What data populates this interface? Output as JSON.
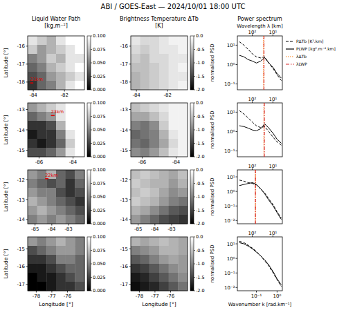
{
  "title": "ABI / GOES-East — 2024/10/01  18:00 UTC",
  "chart_data": [
    {
      "type": "heatmap",
      "title": "Liquid Water Path",
      "subtitle": "[kg.m⁻²]",
      "ylabel": "Latitude [°]",
      "xlim": [
        -84.36,
        -80.72
      ],
      "ylim": [
        -18.43,
        -15.43
      ],
      "xticks": [
        -84,
        -82
      ],
      "yticks": [
        -18,
        -17,
        -16
      ],
      "cells": [
        [
          0.09,
          0.08,
          0.07,
          0.09,
          0.1,
          0.1
        ],
        [
          0.08,
          0.06,
          0.07,
          0.08,
          0.09,
          0.1
        ],
        [
          0.05,
          0.06,
          0.08,
          0.07,
          0.09,
          0.09
        ],
        [
          0.04,
          0.05,
          0.07,
          0.08,
          0.09,
          0.1
        ],
        [
          0.03,
          0.04,
          0.06,
          0.07,
          0.08,
          0.09
        ],
        [
          0.02,
          0.04,
          0.05,
          0.07,
          0.09,
          0.1
        ]
      ],
      "colorbar": {
        "range": [
          0,
          0.1
        ],
        "ticks": [
          {
            "value": 0,
            "label": "0.000"
          },
          {
            "value": 0.025,
            "label": "0.025"
          },
          {
            "value": 0.05,
            "label": "0.050"
          },
          {
            "value": 0.075,
            "label": "0.075"
          },
          {
            "value": 0.1,
            "label": "0.100"
          }
        ]
      },
      "scalebar": {
        "label": "21km",
        "km": 21,
        "lon": -84.2,
        "lat": -18.05
      }
    },
    {
      "type": "heatmap",
      "title": "Brightness Temperature ΔTb",
      "subtitle": "[K]",
      "xlim": [
        -84.36,
        -80.72
      ],
      "ylim": [
        -18.43,
        -15.43
      ],
      "xticks": [
        -84,
        -82
      ],
      "yticks": [
        -18,
        -17,
        -16
      ],
      "cells": [
        [
          -0.2,
          -0.3,
          -0.3,
          -0.2,
          -0.1,
          -0.1
        ],
        [
          -0.3,
          -0.4,
          -0.3,
          -0.2,
          -0.2,
          -0.1
        ],
        [
          -0.4,
          -0.5,
          -0.3,
          -0.3,
          -0.2,
          -0.2
        ],
        [
          -0.5,
          -0.5,
          -0.4,
          -0.3,
          -0.2,
          -0.1
        ],
        [
          -0.6,
          -0.5,
          -0.4,
          -0.3,
          -0.2,
          -0.2
        ],
        [
          -0.6,
          -0.5,
          -0.4,
          -0.3,
          -0.2,
          -0.1
        ]
      ],
      "colorbar": {
        "range": [
          -2,
          0
        ],
        "ticks": [
          {
            "value": -2,
            "label": "-2.0"
          },
          -1.5,
          {
            "value": -1,
            "label": "-1.0"
          },
          -0.5,
          {
            "value": 0,
            "label": "0.0"
          }
        ]
      }
    },
    {
      "type": "line",
      "title": "Power spectrum",
      "x2label": "Wavelength λ [km]",
      "ylabel": "normalised PSD",
      "log": true,
      "legend": "right",
      "xlim": [
        0.012,
        1.8
      ],
      "x2lim": [
        523.6,
        3.49
      ],
      "x2ticks": [
        {
          "value": 100,
          "label": "10²"
        },
        {
          "value": 10,
          "label": "10¹"
        }
      ],
      "ylim": [
        0.05,
        30
      ],
      "yticks": [
        {
          "value": 0.1,
          "label": "10⁻¹"
        },
        {
          "value": 1,
          "label": "10⁰"
        },
        {
          "value": 10,
          "label": "10¹"
        }
      ],
      "x": [
        0.015,
        0.025,
        0.04,
        0.065,
        0.1,
        0.16,
        0.25,
        0.4,
        0.65,
        1.0,
        1.6
      ],
      "series": [
        {
          "name": "PΔTb [K².km]",
          "color": "#000000",
          "line_style": "dashed",
          "values": [
            15,
            10,
            6,
            3.5,
            2.5,
            2.2,
            2.5,
            1.2,
            0.6,
            0.3,
            0.15
          ]
        },
        {
          "name": "PLWP [kg².m⁻⁴.km]",
          "color": "#000000",
          "line_style": "solid",
          "values": [
            3,
            2.5,
            1.8,
            1.5,
            1.2,
            1.5,
            2.3,
            1.2,
            0.7,
            0.35,
            0.2
          ]
        }
      ],
      "markers": [
        {
          "name": "λΔTb",
          "color": "#ff7f0e",
          "line_style": "dotted",
          "value": 28
        },
        {
          "name": "λLWP",
          "color": "#d62728",
          "line_style": "dashdot",
          "value": 27
        }
      ]
    },
    {
      "type": "heatmap",
      "ylabel": "Latitude [°]",
      "xlim": [
        -86.67,
        -83.33
      ],
      "ylim": [
        -15.32,
        -12.68
      ],
      "xticks": [
        -86,
        -84
      ],
      "yticks": [
        -15,
        -14,
        -13
      ],
      "cells": [
        [
          0.06,
          0.07,
          0.08,
          0.09,
          0.1,
          0.1
        ],
        [
          0.04,
          0.05,
          0.06,
          0.09,
          0.1,
          0.1
        ],
        [
          0.02,
          0.02,
          0.03,
          0.07,
          0.1,
          0.1
        ],
        [
          0.01,
          0.02,
          0.02,
          0.05,
          0.09,
          0.1
        ],
        [
          0.02,
          0.01,
          0.02,
          0.04,
          0.08,
          0.1
        ],
        [
          0.03,
          0.03,
          0.04,
          0.06,
          0.09,
          0.1
        ]
      ],
      "colorbar": {
        "range": [
          0,
          0.1
        ],
        "ticks": [
          {
            "value": 0,
            "label": "0.000"
          },
          {
            "value": 0.025,
            "label": "0.025"
          },
          {
            "value": 0.05,
            "label": "0.050"
          },
          {
            "value": 0.075,
            "label": "0.075"
          },
          {
            "value": 0.1,
            "label": "0.100"
          }
        ]
      },
      "scalebar": {
        "label": "23km",
        "km": 23,
        "lon": -85.3,
        "lat": -13.3
      }
    },
    {
      "type": "heatmap",
      "xlim": [
        -86.67,
        -83.33
      ],
      "ylim": [
        -15.32,
        -12.68
      ],
      "xticks": [
        -86,
        -84
      ],
      "yticks": [
        -15,
        -14,
        -13
      ],
      "cells": [
        [
          -0.5,
          -0.4,
          -0.3,
          -0.2,
          -0.1,
          -0.1
        ],
        [
          -0.7,
          -0.7,
          -0.5,
          -0.3,
          -0.1,
          -0.1
        ],
        [
          -1.0,
          -1.1,
          -0.9,
          -0.4,
          -0.1,
          -0.1
        ],
        [
          -1.2,
          -1.1,
          -1.0,
          -0.6,
          -0.2,
          -0.1
        ],
        [
          -1.1,
          -1.2,
          -1.0,
          -0.7,
          -0.3,
          -0.1
        ],
        [
          -0.9,
          -1.0,
          -0.8,
          -0.5,
          -0.2,
          -0.1
        ]
      ],
      "colorbar": {
        "range": [
          -2,
          0
        ],
        "ticks": [
          {
            "value": -2,
            "label": "-2.0"
          },
          -1.5,
          {
            "value": -1,
            "label": "-1.0"
          },
          -0.5,
          {
            "value": 0,
            "label": "0.0"
          }
        ]
      }
    },
    {
      "type": "line",
      "ylabel": "normalised PSD",
      "log": true,
      "xlim": [
        0.012,
        1.8
      ],
      "x2lim": [
        523.6,
        3.49
      ],
      "x2ticks": [
        {
          "value": 100,
          "label": "10²"
        },
        {
          "value": 10,
          "label": "10¹"
        }
      ],
      "ylim": [
        0.05,
        30
      ],
      "yticks": [
        {
          "value": 0.1,
          "label": "10⁻¹"
        },
        {
          "value": 1,
          "label": "10⁰"
        },
        {
          "value": 10,
          "label": "10¹"
        }
      ],
      "x": [
        0.015,
        0.025,
        0.04,
        0.065,
        0.1,
        0.16,
        0.25,
        0.4,
        0.65,
        1.0,
        1.6
      ],
      "series": [
        {
          "color": "#000000",
          "line_style": "dashed",
          "values": [
            12,
            8,
            5,
            3,
            2,
            1.6,
            1.8,
            1,
            0.5,
            0.3,
            0.2
          ]
        },
        {
          "color": "#000000",
          "line_style": "solid",
          "values": [
            2,
            1.8,
            1.5,
            1.2,
            1.1,
            1.4,
            2.5,
            1.5,
            0.8,
            0.4,
            0.25
          ]
        }
      ],
      "markers": [
        {
          "color": "#ff7f0e",
          "line_style": "dotted",
          "value": 27
        },
        {
          "color": "#d62728",
          "line_style": "dashdot",
          "value": 26
        }
      ]
    },
    {
      "type": "heatmap",
      "ylabel": "Latitude [°]",
      "xlim": [
        -85.44,
        -82.05
      ],
      "ylim": [
        -14.21,
        -11.51
      ],
      "xticks": [
        -85,
        -84,
        -83
      ],
      "yticks": [
        -14,
        -13,
        -12
      ],
      "cells": [
        [
          0.06,
          0.05,
          0.07,
          0.04,
          0.03,
          0.05
        ],
        [
          0.05,
          0.04,
          0.03,
          0.04,
          0.02,
          0.04
        ],
        [
          0.06,
          0.05,
          0.05,
          0.03,
          0.02,
          0.03
        ],
        [
          0.07,
          0.06,
          0.05,
          0.04,
          0.03,
          0.02
        ],
        [
          0.06,
          0.07,
          0.06,
          0.05,
          0.04,
          0.03
        ],
        [
          0.05,
          0.06,
          0.05,
          0.06,
          0.05,
          0.04
        ]
      ],
      "colorbar": {
        "range": [
          0,
          0.1
        ],
        "ticks": [
          {
            "value": 0,
            "label": "0.000"
          },
          {
            "value": 0.025,
            "label": "0.025"
          },
          {
            "value": 0.05,
            "label": "0.050"
          },
          {
            "value": 0.075,
            "label": "0.075"
          },
          {
            "value": 0.1,
            "label": "0.100"
          }
        ]
      },
      "scalebar": {
        "label": "22km",
        "km": 22,
        "lon": -84.4,
        "lat": -11.95
      }
    },
    {
      "type": "heatmap",
      "xlim": [
        -85.44,
        -82.05
      ],
      "ylim": [
        -14.21,
        -11.51
      ],
      "xticks": [
        -85,
        -84,
        -83
      ],
      "yticks": [
        -14,
        -13,
        -12
      ],
      "cells": [
        [
          -0.5,
          -0.4,
          -0.5,
          -0.6,
          -0.7,
          -0.5
        ],
        [
          -0.4,
          -0.5,
          -0.6,
          -0.6,
          -0.8,
          -0.6
        ],
        [
          -0.5,
          -0.4,
          -0.5,
          -0.7,
          -0.9,
          -0.8
        ],
        [
          -0.4,
          -0.5,
          -0.6,
          -0.8,
          -1.0,
          -1.1
        ],
        [
          -0.6,
          -0.7,
          -0.9,
          -1.1,
          -1.3,
          -1.4
        ],
        [
          -0.8,
          -1.0,
          -1.2,
          -1.4,
          -1.5,
          -1.6
        ]
      ],
      "colorbar": {
        "range": [
          -2,
          0
        ],
        "ticks": [
          {
            "value": -2,
            "label": "-2.0"
          },
          -1.5,
          {
            "value": -1,
            "label": "-1.0"
          },
          -0.5,
          {
            "value": 0,
            "label": "0.0"
          }
        ]
      }
    },
    {
      "type": "line",
      "ylabel": "normalised PSD",
      "log": true,
      "xlim": [
        0.012,
        1.8
      ],
      "x2lim": [
        523.6,
        3.49
      ],
      "x2ticks": [
        {
          "value": 100,
          "label": "10²"
        },
        {
          "value": 10,
          "label": "10¹"
        }
      ],
      "ylim": [
        0.006,
        30
      ],
      "yticks": [
        {
          "value": 0.01,
          "label": "10⁻²"
        },
        {
          "value": 0.1,
          "label": "10⁻¹"
        },
        {
          "value": 1,
          "label": "10⁰"
        },
        {
          "value": 10,
          "label": "10¹"
        }
      ],
      "x": [
        0.015,
        0.025,
        0.04,
        0.065,
        0.1,
        0.16,
        0.25,
        0.4,
        0.65,
        1.0,
        1.6
      ],
      "series": [
        {
          "color": "#000000",
          "line_style": "dashed",
          "values": [
            6,
            5,
            4,
            3.5,
            2.8,
            1.5,
            0.8,
            0.3,
            0.12,
            0.04,
            0.015
          ]
        },
        {
          "color": "#000000",
          "line_style": "solid",
          "values": [
            2.5,
            3,
            3.5,
            4,
            3,
            1.5,
            0.7,
            0.25,
            0.1,
            0.035,
            0.012
          ]
        }
      ],
      "markers": [
        {
          "color": "#ff7f0e",
          "line_style": "dotted",
          "value": 70
        },
        {
          "color": "#d62728",
          "line_style": "dashdot",
          "value": 70
        }
      ]
    },
    {
      "type": "heatmap",
      "ylabel": "Latitude [°]",
      "xlabel": "Longitude [°]",
      "xlim": [
        -78.55,
        -74.91
      ],
      "ylim": [
        -17.36,
        -14.33
      ],
      "xticks": [
        -78,
        -77,
        -76
      ],
      "yticks": [
        -17,
        -16,
        -15
      ],
      "cells": [
        [
          0.06,
          0.05,
          0.06,
          0.07,
          0.06,
          0.05
        ],
        [
          0.03,
          0.04,
          0.05,
          0.06,
          0.06,
          0.05
        ],
        [
          0.02,
          0.02,
          0.03,
          0.05,
          0.05,
          0.04
        ],
        [
          0.01,
          0.01,
          0.02,
          0.03,
          0.04,
          0.04
        ],
        [
          0.0,
          0.01,
          0.01,
          0.02,
          0.03,
          0.04
        ],
        [
          0.0,
          0.0,
          0.01,
          0.02,
          0.02,
          0.03
        ]
      ],
      "colorbar": {
        "range": [
          0,
          0.1
        ],
        "ticks": [
          {
            "value": 0,
            "label": "0.000"
          },
          {
            "value": 0.025,
            "label": "0.025"
          },
          {
            "value": 0.05,
            "label": "0.050"
          },
          {
            "value": 0.075,
            "label": "0.075"
          },
          {
            "value": 0.1,
            "label": "0.100"
          }
        ]
      }
    },
    {
      "type": "heatmap",
      "xlabel": "Longitude [°]",
      "xlim": [
        -78.55,
        -74.91
      ],
      "ylim": [
        -17.36,
        -14.33
      ],
      "xticks": [
        -78,
        -77,
        -76
      ],
      "yticks": [
        -17,
        -16,
        -15
      ],
      "cells": [
        [
          -0.6,
          -0.7,
          -0.6,
          -0.5,
          -0.6,
          -0.7
        ],
        [
          -1.0,
          -0.9,
          -0.8,
          -0.6,
          -0.6,
          -0.7
        ],
        [
          -1.3,
          -1.2,
          -1.0,
          -0.8,
          -0.7,
          -0.8
        ],
        [
          -1.6,
          -1.5,
          -1.3,
          -1.1,
          -0.9,
          -0.8
        ],
        [
          -1.8,
          -1.7,
          -1.5,
          -1.3,
          -1.1,
          -0.9
        ],
        [
          -1.9,
          -1.8,
          -1.7,
          -1.5,
          -1.3,
          -1.1
        ]
      ],
      "colorbar": {
        "range": [
          -2,
          0
        ],
        "ticks": [
          {
            "value": -2,
            "label": "-2.0"
          },
          -1.5,
          {
            "value": -1,
            "label": "-1.0"
          },
          -0.5,
          {
            "value": 0,
            "label": "0.0"
          }
        ]
      }
    },
    {
      "type": "line",
      "ylabel": "normalised PSD",
      "xlabel": "Wavenumber k [rad.km⁻¹]",
      "log": true,
      "xlim": [
        0.012,
        1.8
      ],
      "xticks": [
        {
          "value": 0.1,
          "label": "10⁻¹"
        },
        {
          "value": 1,
          "label": "10⁰"
        }
      ],
      "x2lim": [
        523.6,
        3.49
      ],
      "x2ticks": [
        {
          "value": 100,
          "label": "10²"
        },
        {
          "value": 10,
          "label": "10¹"
        }
      ],
      "ylim": [
        0.006,
        30
      ],
      "yticks": [
        {
          "value": 0.01,
          "label": "10⁻²"
        },
        {
          "value": 0.1,
          "label": "10⁻¹"
        },
        {
          "value": 1,
          "label": "10⁰"
        },
        {
          "value": 10,
          "label": "10¹"
        }
      ],
      "x": [
        0.015,
        0.025,
        0.04,
        0.065,
        0.1,
        0.16,
        0.25,
        0.4,
        0.65,
        1.0,
        1.6
      ],
      "series": [
        {
          "color": "#000000",
          "line_style": "dashed",
          "values": [
            15,
            12,
            8,
            5,
            3,
            1.5,
            0.7,
            0.3,
            0.1,
            0.035,
            0.012
          ]
        },
        {
          "color": "#000000",
          "line_style": "solid",
          "values": [
            12,
            10,
            7,
            4.5,
            2.7,
            1.5,
            0.8,
            0.35,
            0.12,
            0.04,
            0.015
          ]
        }
      ]
    }
  ]
}
